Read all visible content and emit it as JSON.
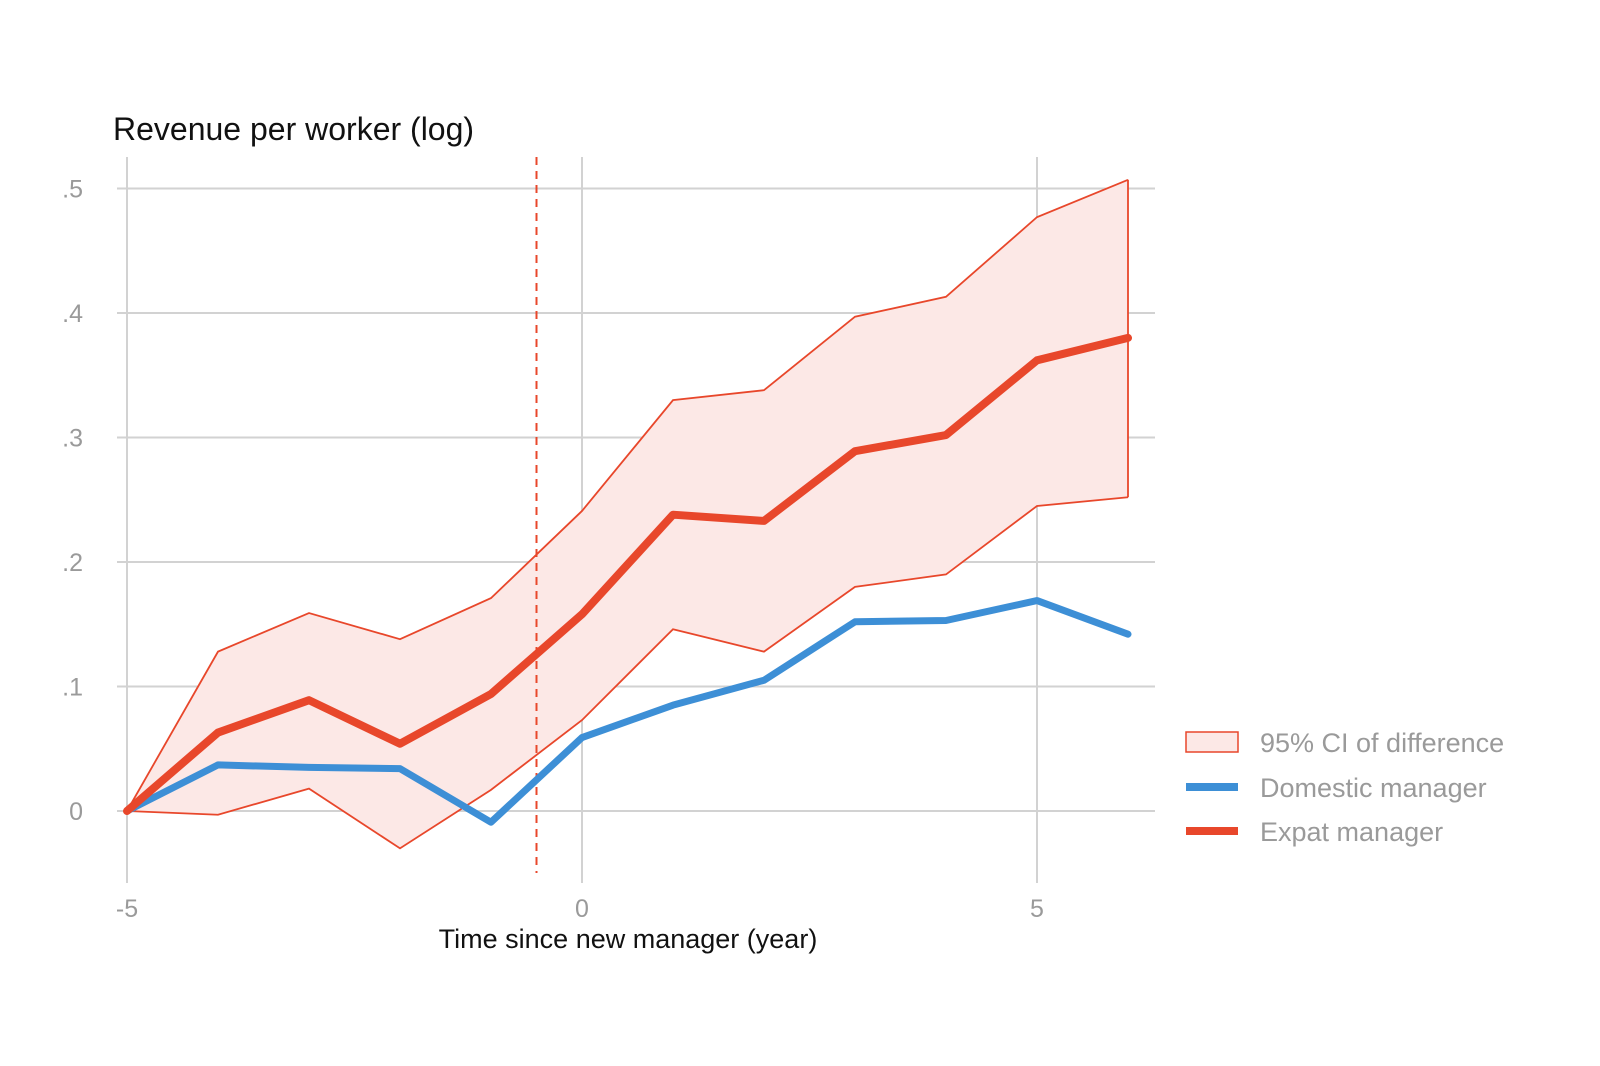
{
  "chart_data": {
    "type": "line",
    "title": "Revenue per worker (log)",
    "xlabel": "Time since new manager (year)",
    "ylabel": "",
    "x": [
      -5,
      -4,
      -3,
      -2,
      -1,
      0,
      1,
      2,
      3,
      4,
      5,
      6
    ],
    "xlim": [
      -5,
      6
    ],
    "ylim": [
      -0.06,
      0.52
    ],
    "x_ticks": [
      {
        "value": -5,
        "label": "-5"
      },
      {
        "value": 0,
        "label": "0"
      },
      {
        "value": 5,
        "label": "5"
      }
    ],
    "y_ticks": [
      {
        "value": 0,
        "label": "0"
      },
      {
        "value": 0.1,
        "label": ".1"
      },
      {
        "value": 0.2,
        "label": ".2"
      },
      {
        "value": 0.3,
        "label": ".3"
      },
      {
        "value": 0.4,
        "label": ".4"
      },
      {
        "value": 0.5,
        "label": ".5"
      }
    ],
    "grid": true,
    "vertical_reference_line": {
      "x": -0.5,
      "style": "dashed",
      "color": "#e8472b"
    },
    "band": {
      "name": "95% CI of difference",
      "lower": [
        0.0,
        -0.003,
        0.018,
        -0.03,
        0.017,
        0.073,
        0.146,
        0.128,
        0.18,
        0.19,
        0.245,
        0.252
      ],
      "upper": [
        0.0,
        0.128,
        0.159,
        0.138,
        0.171,
        0.241,
        0.33,
        0.338,
        0.397,
        0.413,
        0.477,
        0.507
      ],
      "fill": "#fce8e6",
      "stroke": "#e8472b"
    },
    "series": [
      {
        "name": "Domestic manager",
        "color": "#3d8fd6",
        "values": [
          0.0,
          0.037,
          0.035,
          0.034,
          -0.009,
          0.059,
          0.085,
          0.105,
          0.152,
          0.153,
          0.169,
          0.142
        ]
      },
      {
        "name": "Expat manager",
        "color": "#e8472b",
        "values": [
          0.0,
          0.063,
          0.089,
          0.054,
          0.094,
          0.158,
          0.238,
          0.233,
          0.289,
          0.302,
          0.362,
          0.38
        ]
      }
    ],
    "legend": {
      "position": "right",
      "items": [
        {
          "label": "95% CI of difference",
          "kind": "band"
        },
        {
          "label": "Domestic manager",
          "kind": "line"
        },
        {
          "label": "Expat manager",
          "kind": "line"
        }
      ]
    }
  }
}
